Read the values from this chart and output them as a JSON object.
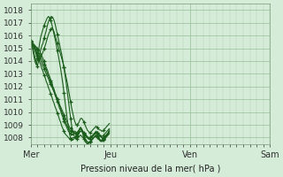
{
  "xlabel": "Pression niveau de la mer( hPa )",
  "ylim": [
    1007.5,
    1018.5
  ],
  "yticks": [
    1008,
    1009,
    1010,
    1011,
    1012,
    1013,
    1014,
    1015,
    1016,
    1017,
    1018
  ],
  "day_labels": [
    "Mer",
    "Jeu",
    "Ven",
    "Sam"
  ],
  "day_positions": [
    0,
    72,
    144,
    216
  ],
  "bg_color": "#d4ecd8",
  "grid_color": "#9abf9a",
  "line_color": "#1a5c1a",
  "vline_x": 216,
  "total_points": 288,
  "series": [
    [
      1015.5,
      1015.4,
      1015.3,
      1015.2,
      1015.0,
      1014.8,
      1014.6,
      1014.4,
      1014.2,
      1014.0,
      1013.8,
      1013.6,
      1013.4,
      1013.2,
      1013.0,
      1012.8,
      1012.6,
      1012.4,
      1012.2,
      1012.0,
      1011.8,
      1011.6,
      1011.4,
      1011.2,
      1011.0,
      1010.8,
      1010.6,
      1010.4,
      1010.2,
      1010.0,
      1009.8,
      1009.6,
      1009.4,
      1009.2,
      1009.0,
      1008.8,
      1008.7,
      1008.6,
      1008.5,
      1008.4,
      1008.3,
      1008.2,
      1008.2,
      1008.3,
      1008.4,
      1008.5,
      1008.5,
      1008.4,
      1008.3,
      1008.2,
      1008.1,
      1008.0,
      1007.9,
      1007.9,
      1007.9,
      1008.0,
      1008.1,
      1008.2,
      1008.3,
      1008.4,
      1008.4,
      1008.3,
      1008.2,
      1008.1,
      1008.0,
      1007.9,
      1007.9,
      1008.0,
      1008.1,
      1008.2,
      1008.3,
      1008.5
    ],
    [
      1015.5,
      1015.4,
      1015.2,
      1015.0,
      1014.8,
      1014.6,
      1014.4,
      1014.2,
      1013.9,
      1013.7,
      1013.4,
      1013.2,
      1012.9,
      1012.7,
      1012.4,
      1012.2,
      1011.9,
      1011.7,
      1011.4,
      1011.2,
      1010.9,
      1010.7,
      1010.4,
      1010.2,
      1009.9,
      1009.7,
      1009.4,
      1009.2,
      1008.9,
      1008.7,
      1008.5,
      1008.3,
      1008.2,
      1008.1,
      1008.0,
      1007.9,
      1007.9,
      1007.9,
      1008.0,
      1008.0,
      1008.0,
      1007.9,
      1007.9,
      1008.0,
      1008.1,
      1008.2,
      1008.1,
      1008.0,
      1007.9,
      1007.8,
      1007.7,
      1007.6,
      1007.6,
      1007.6,
      1007.7,
      1007.8,
      1007.9,
      1008.0,
      1008.1,
      1008.2,
      1008.1,
      1008.0,
      1007.9,
      1007.8,
      1007.7,
      1007.7,
      1007.8,
      1007.9,
      1008.0,
      1008.1,
      1008.2,
      1008.3
    ],
    [
      1015.5,
      1015.4,
      1015.3,
      1015.2,
      1015.1,
      1015.0,
      1014.9,
      1014.7,
      1014.5,
      1014.3,
      1014.1,
      1013.9,
      1013.7,
      1013.5,
      1013.3,
      1013.0,
      1012.8,
      1012.6,
      1012.3,
      1012.1,
      1011.8,
      1011.6,
      1011.3,
      1011.1,
      1010.8,
      1010.6,
      1010.3,
      1010.1,
      1009.8,
      1009.6,
      1009.3,
      1009.1,
      1008.9,
      1008.7,
      1008.5,
      1008.4,
      1008.3,
      1008.2,
      1008.2,
      1008.3,
      1008.4,
      1008.3,
      1008.3,
      1008.3,
      1008.4,
      1008.5,
      1008.5,
      1008.4,
      1008.3,
      1008.2,
      1008.1,
      1008.0,
      1007.9,
      1007.9,
      1008.0,
      1008.1,
      1008.1,
      1008.2,
      1008.3,
      1008.4,
      1008.3,
      1008.2,
      1008.1,
      1008.1,
      1008.0,
      1008.0,
      1008.0,
      1008.1,
      1008.2,
      1008.3,
      1008.4,
      1008.6
    ],
    [
      1015.5,
      1015.4,
      1015.4,
      1015.3,
      1015.2,
      1015.1,
      1015.0,
      1014.9,
      1014.8,
      1014.6,
      1014.4,
      1014.2,
      1014.0,
      1013.7,
      1013.5,
      1013.3,
      1013.0,
      1012.8,
      1012.5,
      1012.3,
      1012.0,
      1011.8,
      1011.5,
      1011.3,
      1011.0,
      1010.8,
      1010.5,
      1010.3,
      1010.0,
      1009.8,
      1009.5,
      1009.3,
      1009.1,
      1008.9,
      1008.7,
      1008.6,
      1008.5,
      1008.4,
      1008.4,
      1008.5,
      1008.5,
      1008.4,
      1008.4,
      1008.5,
      1008.6,
      1008.6,
      1008.6,
      1008.5,
      1008.4,
      1008.3,
      1008.2,
      1008.1,
      1008.0,
      1008.0,
      1008.0,
      1008.1,
      1008.2,
      1008.3,
      1008.4,
      1008.5,
      1008.4,
      1008.3,
      1008.2,
      1008.2,
      1008.1,
      1008.1,
      1008.2,
      1008.3,
      1008.4,
      1008.5,
      1008.6,
      1008.7
    ],
    [
      1015.6,
      1015.5,
      1015.3,
      1015.1,
      1014.8,
      1014.5,
      1014.2,
      1014.0,
      1014.1,
      1014.3,
      1014.5,
      1014.7,
      1015.0,
      1015.2,
      1015.5,
      1015.8,
      1016.1,
      1016.3,
      1016.5,
      1016.6,
      1016.5,
      1016.3,
      1016.0,
      1015.7,
      1015.4,
      1015.1,
      1014.8,
      1014.5,
      1014.2,
      1013.9,
      1013.5,
      1013.1,
      1012.7,
      1012.3,
      1011.8,
      1011.3,
      1010.8,
      1010.3,
      1009.9,
      1009.5,
      1009.2,
      1009.0,
      1009.0,
      1009.1,
      1009.3,
      1009.5,
      1009.5,
      1009.4,
      1009.2,
      1009.0,
      1008.8,
      1008.6,
      1008.5,
      1008.4,
      1008.4,
      1008.5,
      1008.6,
      1008.7,
      1008.8,
      1008.9,
      1008.8,
      1008.7,
      1008.6,
      1008.6,
      1008.5,
      1008.5,
      1008.6,
      1008.7,
      1008.8,
      1008.9,
      1009.0,
      1009.1
    ],
    [
      1015.5,
      1015.3,
      1015.0,
      1014.6,
      1014.2,
      1013.9,
      1013.6,
      1014.0,
      1014.4,
      1014.9,
      1015.2,
      1015.4,
      1015.8,
      1016.1,
      1016.4,
      1016.8,
      1017.1,
      1017.3,
      1017.4,
      1017.5,
      1017.4,
      1017.2,
      1016.9,
      1016.5,
      1016.1,
      1015.7,
      1015.3,
      1014.9,
      1014.5,
      1014.0,
      1013.5,
      1012.9,
      1012.3,
      1011.6,
      1010.9,
      1010.2,
      1009.5,
      1008.9,
      1008.5,
      1008.2,
      1008.0,
      1007.9,
      1008.1,
      1008.3,
      1008.6,
      1008.8,
      1008.7,
      1008.5,
      1008.2,
      1007.9,
      1007.8,
      1007.7,
      1007.6,
      1007.6,
      1007.7,
      1007.8,
      1007.9,
      1008.0,
      1008.1,
      1008.2,
      1008.1,
      1008.0,
      1007.9,
      1007.8,
      1007.8,
      1007.8,
      1007.9,
      1008.0,
      1008.1,
      1008.2,
      1008.3,
      1008.5
    ],
    [
      1015.5,
      1015.2,
      1014.8,
      1014.3,
      1013.9,
      1013.7,
      1014.2,
      1014.8,
      1015.4,
      1015.9,
      1016.2,
      1016.5,
      1016.8,
      1017.0,
      1017.2,
      1017.4,
      1017.5,
      1017.4,
      1017.2,
      1016.9,
      1016.5,
      1016.1,
      1015.7,
      1015.3,
      1014.8,
      1014.4,
      1013.9,
      1013.4,
      1012.8,
      1012.2,
      1011.5,
      1010.8,
      1010.1,
      1009.4,
      1008.8,
      1008.3,
      1007.9,
      1007.8,
      1007.8,
      1007.9,
      1008.0,
      1008.1,
      1008.3,
      1008.5,
      1008.7,
      1008.8,
      1008.6,
      1008.3,
      1008.0,
      1007.7,
      1007.6,
      1007.5,
      1007.5,
      1007.6,
      1007.7,
      1007.8,
      1007.9,
      1008.0,
      1008.1,
      1008.1,
      1008.0,
      1007.9,
      1007.8,
      1007.7,
      1007.7,
      1007.8,
      1007.9,
      1008.0,
      1008.1,
      1008.2,
      1008.3,
      1008.4
    ]
  ]
}
